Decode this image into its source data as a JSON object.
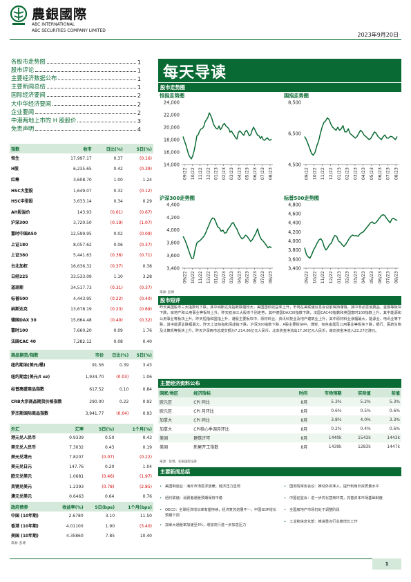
{
  "header": {
    "logo_cn": "農銀國際",
    "logo_en_1": "ABC INTERNATIONAL",
    "logo_en_2": "ABC SECURITIES COMPANY LIMITED",
    "date": "2023年9月20日",
    "brand_color": "#0A6A33"
  },
  "toc": [
    {
      "title": "各股市走势图",
      "page": "1"
    },
    {
      "title": "股市评论",
      "page": "1"
    },
    {
      "title": "主要经济数据公布",
      "page": "1"
    },
    {
      "title": "主要新闻总结",
      "page": "1"
    },
    {
      "title": "国际经济要闻",
      "page": "2"
    },
    {
      "title": "大中华经济要闻",
      "page": "2"
    },
    {
      "title": "企业要闻",
      "page": "2"
    },
    {
      "title": "中港两地上市的 H 股股价",
      "page": "3"
    },
    {
      "title": "免责声明",
      "page": "4"
    }
  ],
  "title": "每天导读",
  "index_table": {
    "headers": [
      "指数",
      "收市",
      "日比(%)",
      "5日(%)"
    ],
    "rows": [
      [
        "恒生",
        "17,997.17",
        "0.37",
        "(0.16)"
      ],
      [
        "H股",
        "6,235.65",
        "0.42",
        "(0.39)"
      ],
      [
        "红筹",
        "3,608.70",
        "1.00",
        "1.24"
      ],
      [
        "HSC大型股",
        "1,649.07",
        "0.32",
        "(0.12)"
      ],
      [
        "HSC中型股",
        "3,633.14",
        "0.34",
        "0.29"
      ],
      [
        "AH股溢价",
        "143.93",
        "(0.61)",
        "(0.67)"
      ],
      [
        "沪深300",
        "3,720.50",
        "(0.19)",
        "(1.07)"
      ],
      [
        "富时中国A50",
        "12,599.95",
        "0.02",
        "(0.09)"
      ],
      [
        "上证180",
        "8,057.62",
        "0.06",
        "(0.37)"
      ],
      [
        "上证380",
        "5,441.63",
        "(0.36)",
        "(0.71)"
      ],
      [
        "台北加权",
        "16,636.32",
        "(0.37)",
        "0.38"
      ],
      [
        "日经225",
        "33,533.09",
        "1.10",
        "3.28"
      ],
      [
        "道琼斯",
        "34,517.73",
        "(0.31)",
        "(0.37)"
      ],
      [
        "标普500",
        "4,443.95",
        "(0.22)",
        "(0.40)"
      ],
      [
        "纳斯达克",
        "13,678.19",
        "(0.23)",
        "(0.69)"
      ],
      [
        "德国DAX 30",
        "15,664.48",
        "(0.40)",
        "(0.32)"
      ],
      [
        "富时100",
        "7,660.20",
        "0.09",
        "1.76"
      ],
      [
        "法国CAC 40",
        "7,282.12",
        "0.08",
        "0.40"
      ]
    ]
  },
  "commodity_table": {
    "headers": [
      "商品期货/指数",
      "市价",
      "日比(%)",
      "5日(%)"
    ],
    "rows": [
      [
        "纽约期油(美元/桶)",
        "91.56",
        "0.39",
        "3.43"
      ],
      [
        "纽约期金(美元/t oz)",
        "1,934.70",
        "(0.03)",
        "1.06"
      ],
      [
        "标普高盛商品指数",
        "617.52",
        "0.10",
        "0.84"
      ],
      [
        "CRB大宗商品期货价格指数",
        "290.00",
        "0.22",
        "0.92"
      ],
      [
        "罗杰斯国际商品指数",
        "3,941.77",
        "(0.04)",
        "0.93"
      ]
    ]
  },
  "fx_table": {
    "headers": [
      "外汇",
      "汇率",
      "5日(%)",
      "1个月(%)"
    ],
    "rows": [
      [
        "港元兑人民币",
        "0.9339",
        "0.50",
        "0.43"
      ],
      [
        "美元兑人民币",
        "7.3032",
        "0.43",
        "0.19"
      ],
      [
        "美元兑港元",
        "7.8207",
        "(0.07)",
        "(0.22)"
      ],
      [
        "美元兑日元",
        "147.76",
        "0.20",
        "1.04"
      ],
      [
        "欧元兑美元",
        "1.0681",
        "(0.46)",
        "(1.97)"
      ],
      [
        "英镑兑美元",
        "1.2393",
        "(0.78)",
        "(2.85)"
      ],
      [
        "澳元兑美元",
        "0.6463",
        "0.64",
        "0.76"
      ]
    ]
  },
  "bond_table": {
    "headers": [
      "政府债券",
      "收益率(%)",
      "5日(bps)",
      "1个月(bps)"
    ],
    "rows": [
      [
        "中国 (10年期)",
        "2.6780",
        "3.10",
        "11.50"
      ],
      [
        "香港 (10年期)",
        "4.01100",
        "1.90",
        "(3.40)"
      ],
      [
        "美国 (10年期)",
        "4.35860",
        "7.85",
        "10.40"
      ]
    ],
    "source": "来源: 彭博"
  },
  "charts_section": "股市走势图",
  "chart_source": "来源: 彭博",
  "charts": [
    {
      "type": "line",
      "title": "恒指走势图",
      "ylim": [
        14000,
        24000
      ],
      "yticks": [
        "24,000",
        "22,000",
        "20,000",
        "18,000",
        "16,000",
        "14,000"
      ],
      "xticks": [
        "09/22",
        "10/22",
        "11/22",
        "12/22",
        "01/23",
        "02/23",
        "03/23",
        "04/23",
        "05/23",
        "06/23",
        "07/23",
        "08/23"
      ],
      "values": [
        18500,
        17800,
        17200,
        16400,
        15600,
        15200,
        14900,
        15400,
        16200,
        17300,
        18600,
        18800,
        19400,
        19700,
        19800,
        20100,
        20900,
        21200,
        21600,
        22300,
        21900,
        21300,
        20500,
        20100,
        19800,
        19700,
        20200,
        19600,
        19900,
        20400,
        20600,
        20200,
        20000,
        19800,
        19200,
        19400,
        19000,
        18700,
        18300,
        18100,
        19100,
        19400,
        19200,
        18900,
        18700,
        19300,
        19500,
        19100,
        18600,
        18800,
        19500,
        20000,
        19600,
        19100,
        18700,
        18600,
        18200,
        18500,
        18000,
        17900,
        18100,
        18300,
        18000,
        17900,
        18100
      ]
    },
    {
      "type": "line",
      "title": "国指走势图",
      "ylim": [
        4500,
        8500
      ],
      "yticks": [
        "8,500",
        "6,500",
        "4,500"
      ],
      "xticks": [
        "09/22",
        "10/22",
        "11/22",
        "12/22",
        "01/23",
        "02/23",
        "03/23",
        "04/23",
        "05/23",
        "06/23",
        "07/23",
        "08/23"
      ],
      "values": [
        6300,
        6100,
        5800,
        5500,
        5200,
        5100,
        5300,
        5700,
        6000,
        6500,
        6900,
        7200,
        7300,
        7500,
        7400,
        7100,
        6900,
        6800,
        6700,
        6900,
        6700,
        6800,
        7000,
        6600,
        6600,
        6800,
        6500,
        6400,
        6300,
        6200,
        6300,
        6500,
        6700,
        6600,
        6400,
        6300,
        6200,
        6100,
        6200,
        6400,
        6600,
        6500,
        6300,
        6200,
        6100,
        6300,
        6400,
        6200,
        6200,
        6300,
        6300,
        6200,
        6100,
        6300
      ]
    },
    {
      "type": "line",
      "title": "沪深300走势图",
      "ylim": [
        3400,
        4400
      ],
      "yticks": [
        "4,400",
        "4,200",
        "4,000",
        "3,800",
        "3,600",
        "3,400"
      ],
      "xticks": [
        "09/22",
        "10/22",
        "11/22",
        "12/22",
        "01/23",
        "02/23",
        "03/23",
        "04/23",
        "05/23",
        "06/23",
        "07/23",
        "08/23"
      ],
      "values": [
        3900,
        3850,
        3780,
        3700,
        3620,
        3550,
        3560,
        3700,
        3800,
        3820,
        3840,
        3870,
        3900,
        3950,
        4020,
        4080,
        4150,
        4190,
        4180,
        4120,
        4050,
        4030,
        3980,
        4000,
        3950,
        3960,
        4020,
        4050,
        4100,
        4120,
        4060,
        4020,
        3950,
        3900,
        3860,
        3880,
        3920,
        3900,
        3860,
        3820,
        3850,
        3900,
        3950,
        4020,
        3920,
        3860,
        3830,
        3800,
        3760,
        3720,
        3740,
        3720
      ]
    },
    {
      "type": "line",
      "title": "标普500走势图",
      "ylim": [
        3400,
        4800
      ],
      "yticks": [
        "4,800",
        "4,600",
        "4,400",
        "4,200",
        "4,000",
        "3,800",
        "3,600",
        "3,400"
      ],
      "xticks": [
        "09/22",
        "10/22",
        "11/22",
        "12/22",
        "01/23",
        "02/23",
        "03/23",
        "04/23",
        "05/23",
        "06/23",
        "07/23",
        "08/23"
      ],
      "values": [
        3850,
        3700,
        3650,
        3620,
        3700,
        3800,
        3870,
        3950,
        4020,
        4050,
        4000,
        3870,
        3800,
        3850,
        3920,
        3950,
        4050,
        4120,
        4100,
        4000,
        3970,
        3920,
        3880,
        3920,
        3980,
        4050,
        4100,
        4130,
        4110,
        4120,
        4100,
        4150,
        4180,
        4200,
        4250,
        4300,
        4350,
        4400,
        4420,
        4380,
        4400,
        4450,
        4500,
        4550,
        4580,
        4560,
        4500,
        4450,
        4400,
        4480,
        4500,
        4470,
        4450
      ]
    }
  ],
  "market_commentary": {
    "title": "股市短评",
    "text": "昨天美国股市三大指数均下跌，其中纳斯达克指数跌幅较大，美国国债收益率上升，市场在美联储议息会议前保持谨慎，其中非必需消费品、金融等板块下跌，房地产和公用事业等板块上升。昨天欧洲三大股市个别走势，其中德国DAX30指数下跌，法国CAC40指数和英国富时100指数上升，其中能源和公用事业等板块上升。昨天恒指和国指上升，港股主要板块中，原材料业、资讯科技业及地产建筑业上升，其中原材料业涨幅最大，能源业、电讯业等下跌，其中能源业跌幅最大。昨天上证综指和深成指下跌，沪深300指数下跌，A股主要板块中，煤炭、有色金属及公用事业等板块下跌，银行、医药生物及计算机等板块上升。昨天沪深两市总成交额为7,214.86亿元人民币，北向资金净流出17.26亿元人民币，南向资金净流入22.27亿港元。"
  },
  "econ_table": {
    "section": "主要经济资料公布",
    "headers": [
      "国家/地区",
      "经济指标",
      "时间",
      "市场预期",
      "实际值",
      "前值"
    ],
    "rows": [
      [
        "欧元区",
        "CPI 同比",
        "8月",
        "5.3%",
        "5.2%",
        "5.3%"
      ],
      [
        "欧元区",
        "CPI 月环比",
        "8月",
        "0.6%",
        "0.5%",
        "0.6%"
      ],
      [
        "加拿大",
        "CPI 同比",
        "8月",
        "3.8%",
        "4.0%",
        "3.3%"
      ],
      [
        "加拿大",
        "CPI核心季调月环比",
        "8月",
        "0.2%",
        "0.4%",
        "0.6%"
      ],
      [
        "美国",
        "建筑许可",
        "8月",
        "1440k",
        "1543k",
        "1443k"
      ],
      [
        "美国",
        "新屋开工指数",
        "8月",
        "1439k",
        "1283k",
        "1447k"
      ]
    ],
    "source": "来源：彭博，农银国际证券"
  },
  "news": {
    "section": "主要新闻总结",
    "left": [
      "美国制造业：海外市场需求放缓，经济压力显现",
      "纽约联储：消费者通胀预期保持平稳",
      "OECD：全球经济增长率有望持续，经济复苏进展不一，中国GDP增长预期下调",
      "加拿大通胀率加速至4%，增加央行进一步加息压力"
    ],
    "right": [
      "国务院常务会议：推动外资准入，提升利用外资质量水平",
      "中国证监会：进一步优化营商环境，完善资本市场基础制度",
      "全国房地产市场仍处于调整阶段",
      "工业和信息化部：推进重点行业稳增长工作"
    ]
  },
  "footer": {
    "page": "1"
  }
}
